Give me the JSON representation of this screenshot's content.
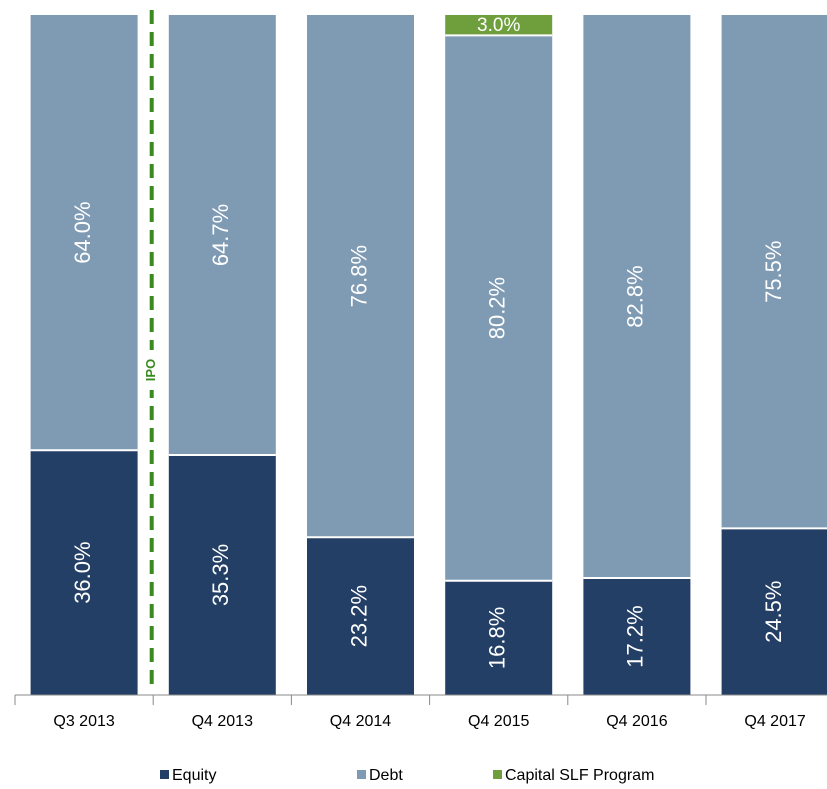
{
  "chart_data": {
    "type": "stacked_bar",
    "categories": [
      "Q3 2013",
      "Q4 2013",
      "Q4 2014",
      "Q4 2015",
      "Q4 2016",
      "Q4 2017"
    ],
    "series": [
      {
        "name": "Equity",
        "color": "#243f66",
        "values": [
          36.0,
          35.3,
          23.2,
          16.8,
          17.2,
          24.5
        ],
        "value_labels": [
          "36.0%",
          "35.3%",
          "23.2%",
          "16.8%",
          "17.2%",
          "24.5%"
        ]
      },
      {
        "name": "Debt",
        "color": "#7f9ab3",
        "values": [
          64.0,
          64.7,
          76.8,
          80.2,
          82.8,
          75.5
        ],
        "value_labels": [
          "64.0%",
          "64.7%",
          "76.8%",
          "80.2%",
          "82.8%",
          "75.5%"
        ]
      },
      {
        "name": "Capital SLF Program",
        "color": "#6f9f3d",
        "values": [
          0,
          0,
          0,
          3.0,
          0,
          0
        ],
        "value_labels": [
          null,
          null,
          null,
          "3.0%",
          null,
          null
        ]
      }
    ],
    "ylim": [
      0,
      100
    ],
    "annotations": [
      {
        "text": "IPO",
        "color": "#3a8a1e"
      }
    ],
    "legend": "bottom"
  }
}
